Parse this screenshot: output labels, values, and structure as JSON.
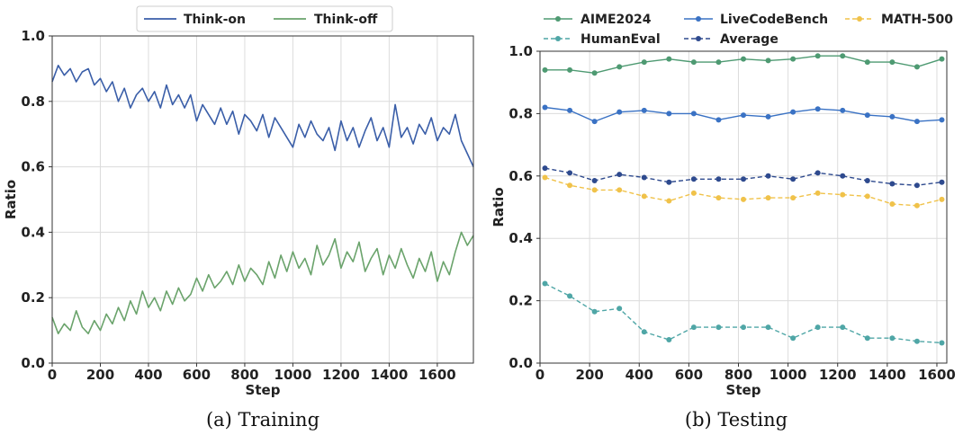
{
  "chart_data": [
    {
      "type": "line",
      "caption": "(a) Training",
      "xlabel": "Step",
      "ylabel": "Ratio",
      "xlim": [
        0,
        1750
      ],
      "ylim": [
        0,
        1.0
      ],
      "xticks": [
        0,
        200,
        400,
        600,
        800,
        1000,
        1200,
        1400,
        1600
      ],
      "yticks": [
        0.0,
        0.2,
        0.4,
        0.6,
        0.8,
        1.0
      ],
      "yticklabels": [
        "0.0",
        "0.2",
        "0.4",
        "0.6",
        "0.8",
        "1.0"
      ],
      "grid": true,
      "legend": "top-center",
      "series": [
        {
          "name": "Think-on",
          "color": "#3a5ea8",
          "x": [
            0,
            25,
            50,
            75,
            100,
            125,
            150,
            175,
            200,
            225,
            250,
            275,
            300,
            325,
            350,
            375,
            400,
            425,
            450,
            475,
            500,
            525,
            550,
            575,
            600,
            625,
            650,
            675,
            700,
            725,
            750,
            775,
            800,
            825,
            850,
            875,
            900,
            925,
            950,
            975,
            1000,
            1025,
            1050,
            1075,
            1100,
            1125,
            1150,
            1175,
            1200,
            1225,
            1250,
            1275,
            1300,
            1325,
            1350,
            1375,
            1400,
            1425,
            1450,
            1475,
            1500,
            1525,
            1550,
            1575,
            1600,
            1625,
            1650,
            1675,
            1700,
            1725,
            1750
          ],
          "y": [
            0.86,
            0.91,
            0.88,
            0.9,
            0.86,
            0.89,
            0.9,
            0.85,
            0.87,
            0.83,
            0.86,
            0.8,
            0.84,
            0.78,
            0.82,
            0.84,
            0.8,
            0.83,
            0.78,
            0.85,
            0.79,
            0.82,
            0.78,
            0.82,
            0.74,
            0.79,
            0.76,
            0.73,
            0.78,
            0.73,
            0.77,
            0.7,
            0.76,
            0.74,
            0.71,
            0.76,
            0.69,
            0.75,
            0.72,
            0.69,
            0.66,
            0.73,
            0.69,
            0.74,
            0.7,
            0.68,
            0.72,
            0.65,
            0.74,
            0.68,
            0.72,
            0.66,
            0.71,
            0.75,
            0.68,
            0.72,
            0.66,
            0.79,
            0.69,
            0.72,
            0.67,
            0.73,
            0.7,
            0.75,
            0.68,
            0.72,
            0.7,
            0.76,
            0.68,
            0.64,
            0.6
          ]
        },
        {
          "name": "Think-off",
          "color": "#6aa36b",
          "x": [
            0,
            25,
            50,
            75,
            100,
            125,
            150,
            175,
            200,
            225,
            250,
            275,
            300,
            325,
            350,
            375,
            400,
            425,
            450,
            475,
            500,
            525,
            550,
            575,
            600,
            625,
            650,
            675,
            700,
            725,
            750,
            775,
            800,
            825,
            850,
            875,
            900,
            925,
            950,
            975,
            1000,
            1025,
            1050,
            1075,
            1100,
            1125,
            1150,
            1175,
            1200,
            1225,
            1250,
            1275,
            1300,
            1325,
            1350,
            1375,
            1400,
            1425,
            1450,
            1475,
            1500,
            1525,
            1550,
            1575,
            1600,
            1625,
            1650,
            1675,
            1700,
            1725,
            1750
          ],
          "y": [
            0.14,
            0.09,
            0.12,
            0.1,
            0.16,
            0.11,
            0.09,
            0.13,
            0.1,
            0.15,
            0.12,
            0.17,
            0.13,
            0.19,
            0.15,
            0.22,
            0.17,
            0.2,
            0.16,
            0.22,
            0.18,
            0.23,
            0.19,
            0.21,
            0.26,
            0.22,
            0.27,
            0.23,
            0.25,
            0.28,
            0.24,
            0.3,
            0.25,
            0.29,
            0.27,
            0.24,
            0.31,
            0.26,
            0.33,
            0.28,
            0.34,
            0.29,
            0.32,
            0.27,
            0.36,
            0.3,
            0.33,
            0.38,
            0.29,
            0.34,
            0.31,
            0.37,
            0.28,
            0.32,
            0.35,
            0.27,
            0.33,
            0.29,
            0.35,
            0.3,
            0.26,
            0.32,
            0.28,
            0.34,
            0.25,
            0.31,
            0.27,
            0.34,
            0.4,
            0.36,
            0.39
          ]
        }
      ]
    },
    {
      "type": "line",
      "caption": "(b) Testing",
      "xlabel": "Step",
      "ylabel": "Ratio",
      "xlim": [
        0,
        1640
      ],
      "ylim": [
        0,
        1.0
      ],
      "xticks": [
        0,
        200,
        400,
        600,
        800,
        1000,
        1200,
        1400,
        1600
      ],
      "yticks": [
        0.0,
        0.2,
        0.4,
        0.6,
        0.8,
        1.0
      ],
      "yticklabels": [
        "0.0",
        "0.2",
        "0.4",
        "0.6",
        "0.8",
        "1.0"
      ],
      "grid": true,
      "legend": "top (above plot, 3 columns)",
      "x": [
        20,
        120,
        220,
        320,
        420,
        520,
        620,
        720,
        820,
        920,
        1020,
        1120,
        1220,
        1320,
        1420,
        1520,
        1620
      ],
      "series": [
        {
          "name": "AIME2024",
          "color": "#4e9a72",
          "dashed": false,
          "values": [
            0.94,
            0.94,
            0.93,
            0.95,
            0.965,
            0.975,
            0.965,
            0.965,
            0.975,
            0.97,
            0.975,
            0.985,
            0.985,
            0.965,
            0.965,
            0.95,
            0.975
          ]
        },
        {
          "name": "LiveCodeBench",
          "color": "#3a72c4",
          "dashed": false,
          "values": [
            0.82,
            0.81,
            0.775,
            0.805,
            0.81,
            0.8,
            0.8,
            0.78,
            0.795,
            0.79,
            0.805,
            0.815,
            0.81,
            0.795,
            0.79,
            0.775,
            0.78
          ]
        },
        {
          "name": "MATH-500",
          "color": "#f0c24a",
          "dashed": true,
          "values": [
            0.595,
            0.57,
            0.555,
            0.555,
            0.535,
            0.52,
            0.545,
            0.53,
            0.525,
            0.53,
            0.53,
            0.545,
            0.54,
            0.535,
            0.51,
            0.505,
            0.525
          ]
        },
        {
          "name": "HumanEval",
          "color": "#4fa6a6",
          "dashed": true,
          "values": [
            0.255,
            0.215,
            0.165,
            0.175,
            0.1,
            0.075,
            0.115,
            0.115,
            0.115,
            0.115,
            0.08,
            0.115,
            0.115,
            0.08,
            0.08,
            0.07,
            0.065
          ]
        },
        {
          "name": "Average",
          "color": "#2e4a8e",
          "dashed": true,
          "values": [
            0.625,
            0.61,
            0.585,
            0.605,
            0.595,
            0.58,
            0.59,
            0.59,
            0.59,
            0.6,
            0.59,
            0.61,
            0.6,
            0.585,
            0.575,
            0.57,
            0.58
          ]
        }
      ]
    }
  ]
}
